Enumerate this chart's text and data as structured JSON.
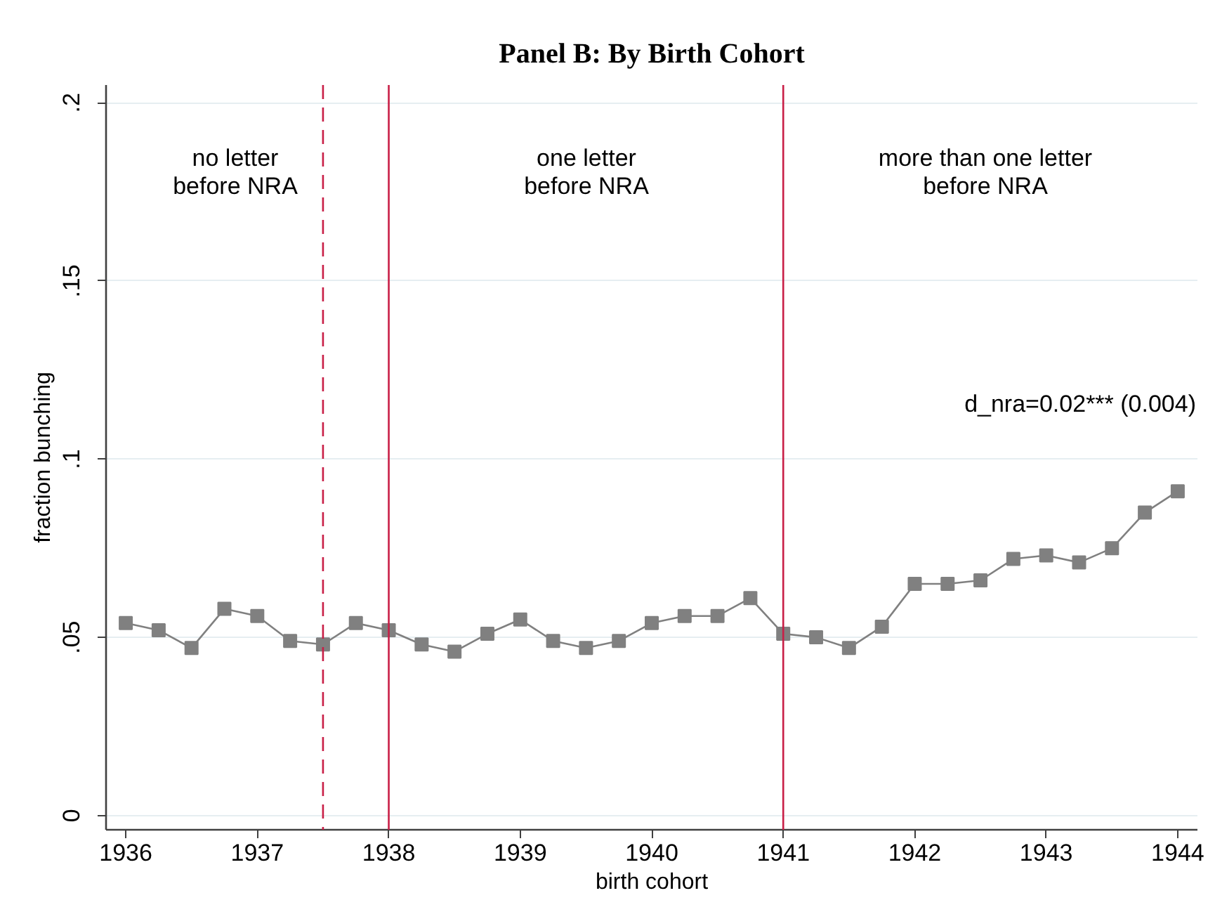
{
  "chart_data": {
    "type": "line",
    "title": "Panel B: By Birth Cohort",
    "xlabel": "birth cohort",
    "ylabel": "fraction bunching",
    "x": [
      1936,
      1936.25,
      1936.5,
      1936.75,
      1937,
      1937.25,
      1937.5,
      1937.75,
      1938,
      1938.25,
      1938.5,
      1938.75,
      1939,
      1939.25,
      1939.5,
      1939.75,
      1940,
      1940.25,
      1940.5,
      1940.75,
      1941,
      1941.25,
      1941.5,
      1941.75,
      1942,
      1942.25,
      1942.5,
      1942.75,
      1943,
      1943.25,
      1943.5,
      1943.75,
      1944
    ],
    "series": [
      {
        "color": "#808080",
        "values": [
          0.054,
          0.052,
          0.047,
          0.058,
          0.056,
          0.049,
          0.048,
          0.054,
          0.052,
          0.048,
          0.046,
          0.051,
          0.055,
          0.049,
          0.047,
          0.049,
          0.054,
          0.056,
          0.056,
          0.061,
          0.051,
          0.05,
          0.047,
          0.053,
          0.065,
          0.065,
          0.066,
          0.072,
          0.073,
          0.071,
          0.075,
          0.085,
          0.091
        ]
      }
    ],
    "marker": "square",
    "line_style": "solid",
    "xlim": [
      1935.85,
      1944.15
    ],
    "ylim": [
      -0.004,
      0.205
    ],
    "xticks": [
      1936,
      1937,
      1938,
      1939,
      1940,
      1941,
      1942,
      1943,
      1944
    ],
    "yticks": [
      0,
      {
        "value": 0.05,
        "label": ".05"
      },
      {
        "value": 0.1,
        "label": ".1"
      },
      {
        "value": 0.15,
        "label": ".15"
      },
      {
        "value": 0.2,
        "label": ".2"
      }
    ],
    "grid": "y",
    "ref_lines": [
      {
        "axis": "x",
        "value": 1937.5,
        "color": "#c81e46",
        "line_style": "dashed"
      },
      {
        "axis": "x",
        "value": 1938,
        "color": "#c81e46",
        "line_style": "solid"
      },
      {
        "axis": "x",
        "value": 1941,
        "color": "#c81e46",
        "line_style": "solid"
      }
    ],
    "annotations": [
      "no letter\nbefore NRA",
      "one letter\nbefore NRA",
      "more than one letter\nbefore NRA",
      "d_nra=0.02*** (0.004)"
    ]
  }
}
